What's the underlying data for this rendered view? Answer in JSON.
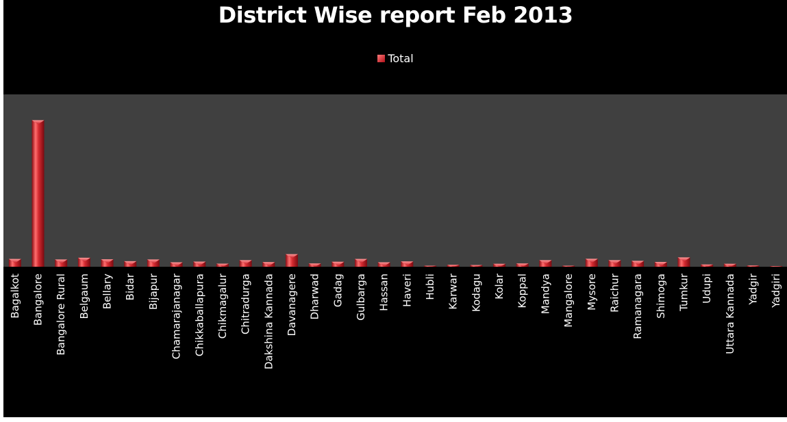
{
  "chart_data": {
    "type": "bar",
    "title": "District Wise report Feb 2013",
    "legend": {
      "position": "top",
      "entries": [
        "Total"
      ]
    },
    "xlabel": "",
    "ylabel": "",
    "ylim": [
      0,
      100
    ],
    "grid": false,
    "colors": {
      "background": "#000000",
      "plot_area": "#404040",
      "bar": "#d42a30",
      "bar_light": "#ff6f6f",
      "bar_dark": "#8a0b12",
      "text": "#ffffff"
    },
    "categories": [
      "Bagalkot",
      "Bangalore",
      "Bangalore Rural",
      "Belgaum",
      "Bellary",
      "Bidar",
      "Bijapur",
      "Chamarajanagar",
      "Chikkaballapura",
      "Chikmagalur",
      "Chitradurga",
      "Dakshina Kannada",
      "Davanagere",
      "Dharwad",
      "Gadag",
      "Gulbarga",
      "Hassan",
      "Haveri",
      "Hubli",
      "Karwar",
      "Kodagu",
      "Kolar",
      "Koppal",
      "Mandya",
      "Mangalore",
      "Mysore",
      "Raichur",
      "Ramanagara",
      "Shimoga",
      "Tumkur",
      "Udupi",
      "Uttara Kannada",
      "Yadgir",
      "Yadgiri"
    ],
    "series": [
      {
        "name": "Total",
        "values": [
          4.5,
          85,
          4.2,
          5.2,
          4.3,
          3.2,
          4.2,
          2.6,
          3,
          1.8,
          3.8,
          2.7,
          7.3,
          1.9,
          2.9,
          4.5,
          2.6,
          3.1,
          0.6,
          1.1,
          1,
          1.7,
          1.9,
          3.8,
          0.6,
          4.6,
          3.8,
          3.4,
          2.8,
          5.4,
          1.3,
          1.7,
          0.7,
          0.4
        ]
      }
    ]
  }
}
